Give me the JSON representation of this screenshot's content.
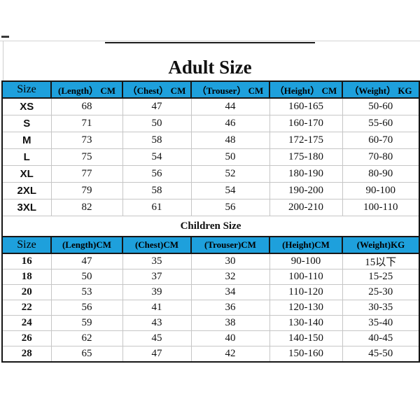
{
  "adult_section": {
    "title": "Adult Size",
    "columns": [
      "Size",
      "(Length） CM",
      "（Chest） CM",
      "（Trouser） CM",
      "（Height） CM",
      "（Weight） KG"
    ],
    "rows": [
      [
        "XS",
        "68",
        "47",
        "44",
        "160-165",
        "50-60"
      ],
      [
        "S",
        "71",
        "50",
        "46",
        "160-170",
        "55-60"
      ],
      [
        "M",
        "73",
        "58",
        "48",
        "172-175",
        "60-70"
      ],
      [
        "L",
        "75",
        "54",
        "50",
        "175-180",
        "70-80"
      ],
      [
        "XL",
        "77",
        "56",
        "52",
        "180-190",
        "80-90"
      ],
      [
        "2XL",
        "79",
        "58",
        "54",
        "190-200",
        "90-100"
      ],
      [
        "3XL",
        "82",
        "61",
        "56",
        "200-210",
        "100-110"
      ]
    ]
  },
  "children_section": {
    "title": "Children Size",
    "columns": [
      "Size",
      "(Length)CM",
      "(Chest)CM",
      "(Trouser)CM",
      "(Height)CM",
      "(Weight)KG"
    ],
    "rows": [
      [
        "16",
        "47",
        "35",
        "30",
        "90-100",
        "15以下"
      ],
      [
        "18",
        "50",
        "37",
        "32",
        "100-110",
        "15-25"
      ],
      [
        "20",
        "53",
        "39",
        "34",
        "110-120",
        "25-30"
      ],
      [
        "22",
        "56",
        "41",
        "36",
        "120-130",
        "30-35"
      ],
      [
        "24",
        "59",
        "43",
        "38",
        "130-140",
        "35-40"
      ],
      [
        "26",
        "62",
        "45",
        "40",
        "140-150",
        "40-45"
      ],
      [
        "28",
        "65",
        "47",
        "42",
        "150-160",
        "45-50"
      ]
    ]
  },
  "colors": {
    "header_bg": "#1EA0DC",
    "grid_line": "#c6c6c6",
    "table_border": "#161616",
    "text": "#111111",
    "background": "#ffffff"
  }
}
